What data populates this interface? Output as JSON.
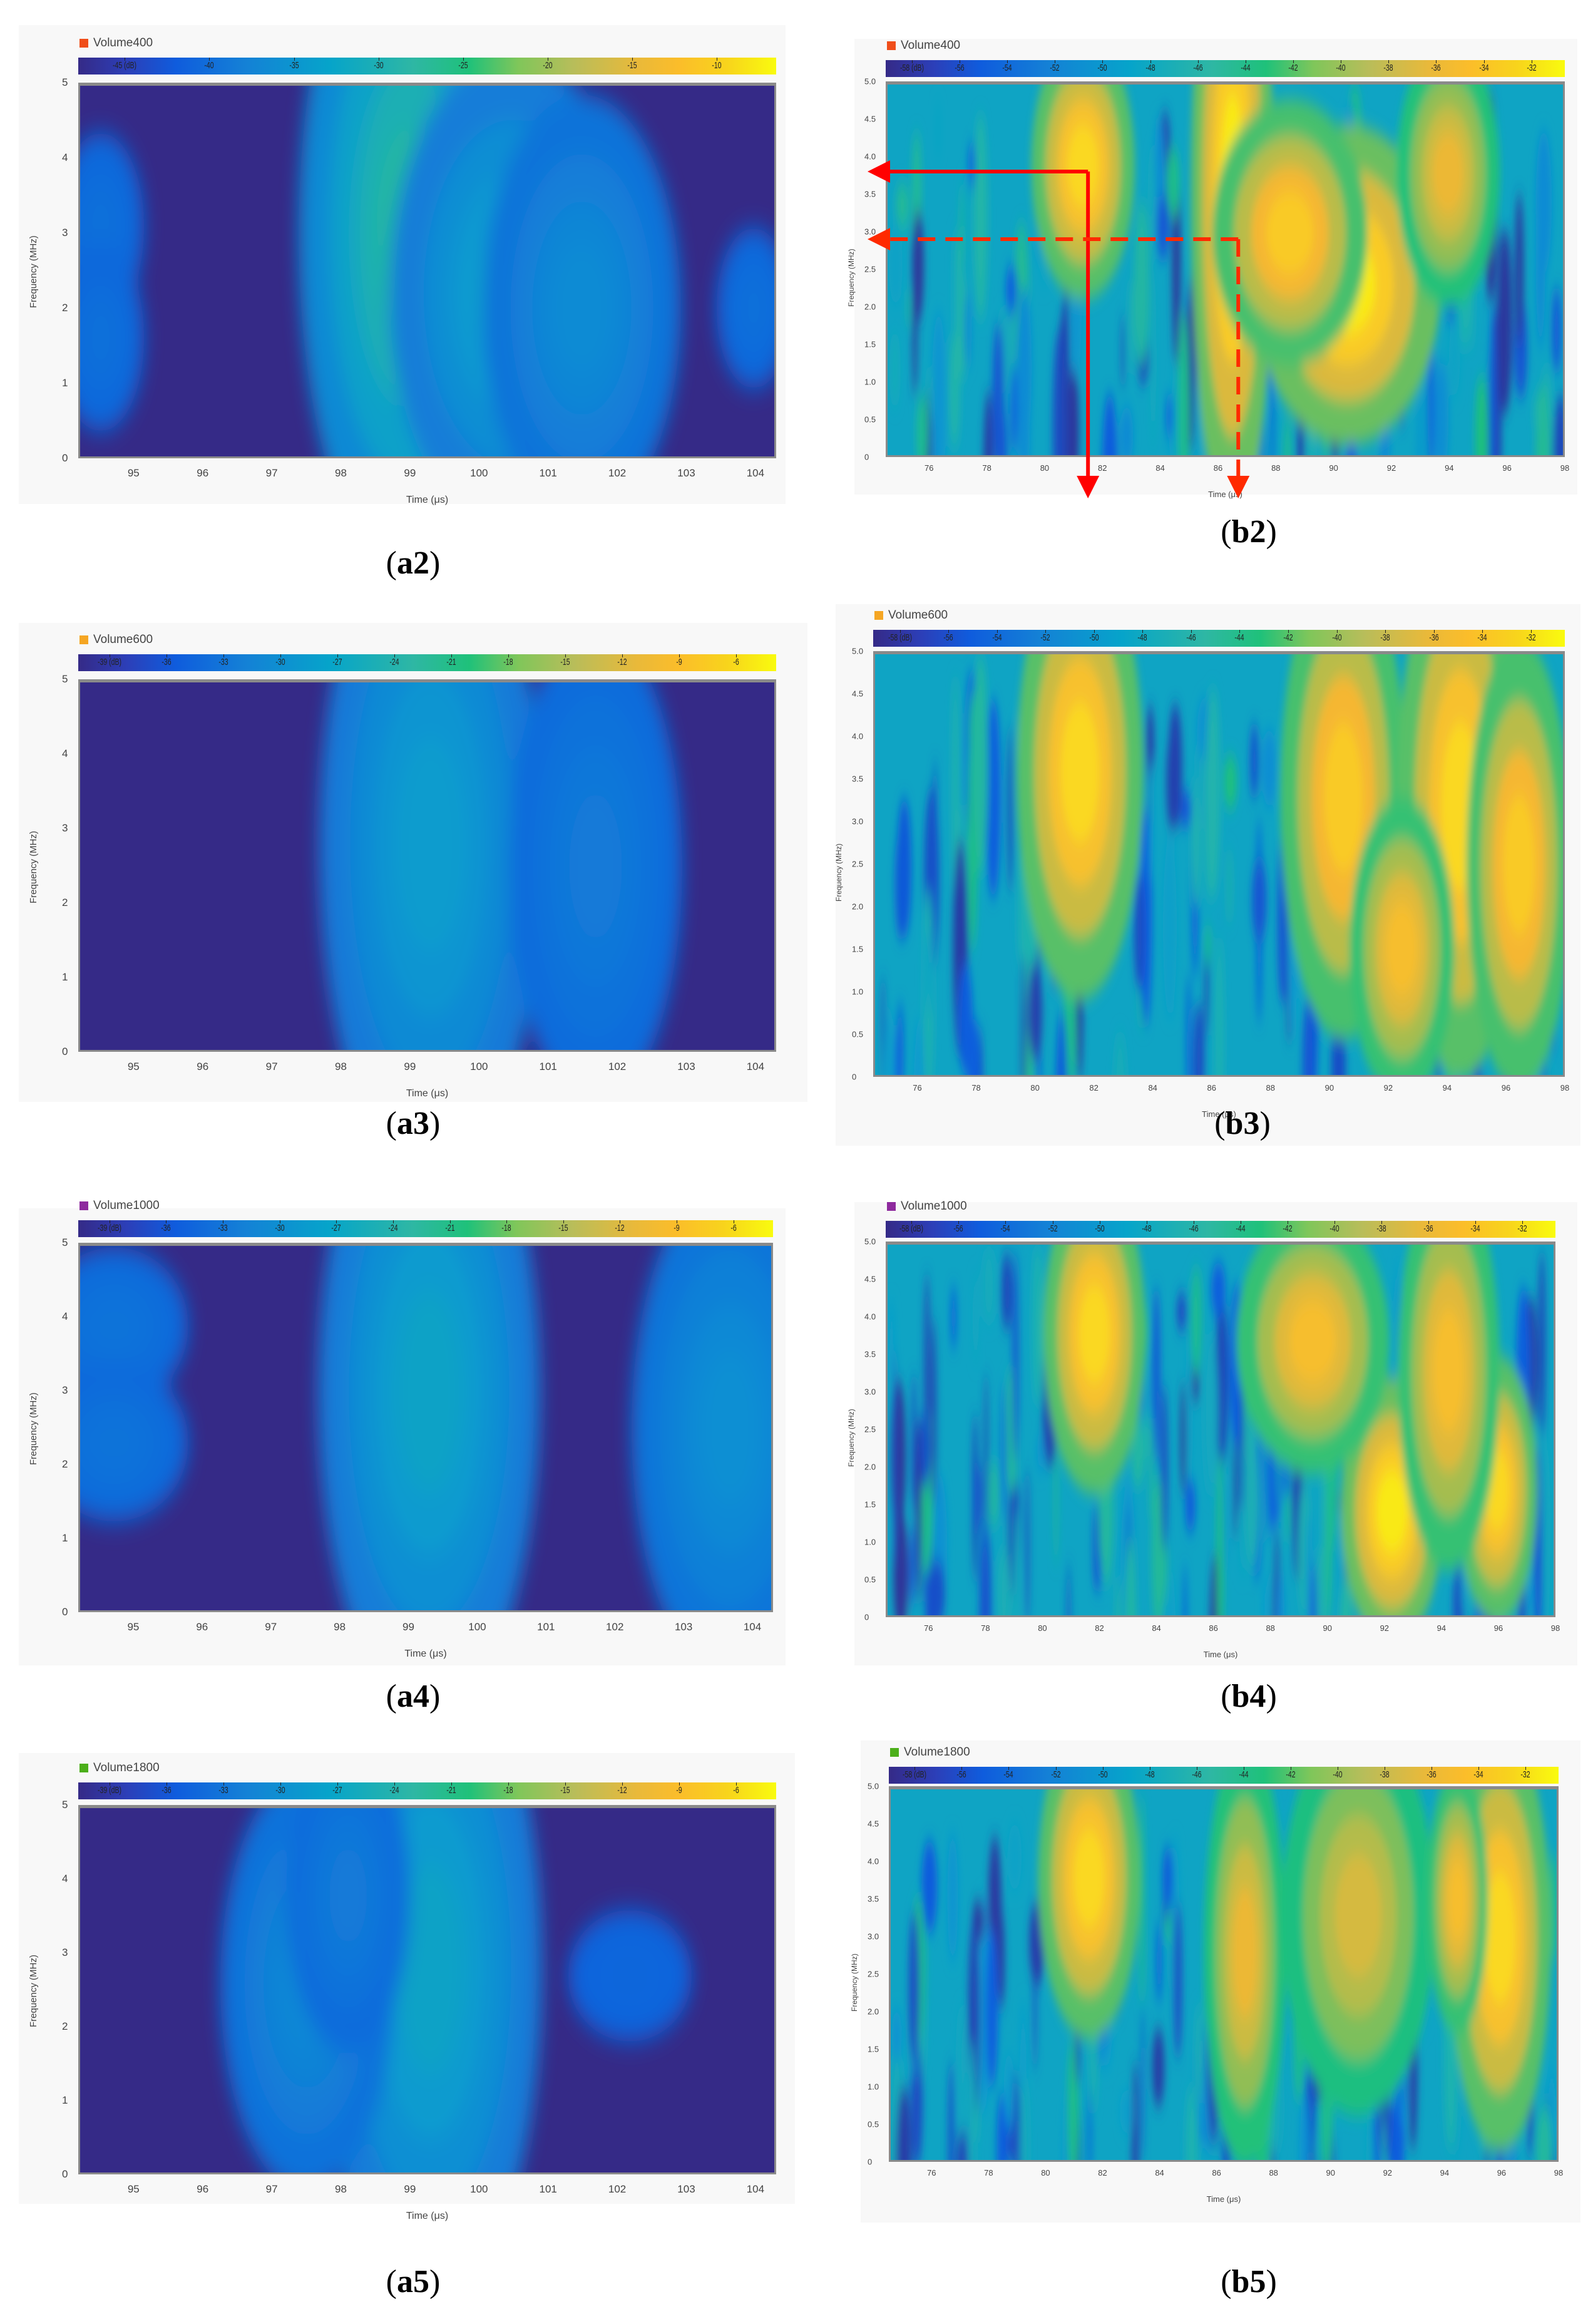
{
  "figure": {
    "panels": [
      {
        "id": "a2",
        "caption_letter": "a2",
        "legend": {
          "label": "Volume400",
          "color": "#f04e1a"
        },
        "colorbar": {
          "ticks": [
            "-45 (dB)",
            "-40",
            "-35",
            "-30",
            "-25",
            "-20",
            "-15",
            "-10"
          ],
          "range": [
            -48,
            -6
          ]
        },
        "xticks": [
          "95",
          "96",
          "97",
          "98",
          "99",
          "100",
          "101",
          "102",
          "103",
          "104"
        ],
        "yticks": [
          "5",
          "4",
          "3",
          "2",
          "1",
          "0"
        ],
        "xlabel": "Time (μs)",
        "ylabel": "Frequency (MHz)"
      },
      {
        "id": "b2",
        "caption_letter": "b2",
        "legend": {
          "label": "Volume400",
          "color": "#f04e1a"
        },
        "colorbar": {
          "ticks": [
            "-58 (dB)",
            "-56",
            "-54",
            "-52",
            "-50",
            "-48",
            "-46",
            "-44",
            "-42",
            "-40",
            "-38",
            "-36",
            "-34",
            "-32"
          ],
          "range": [
            -59,
            -30
          ]
        },
        "xticks": [
          "76",
          "78",
          "80",
          "82",
          "84",
          "86",
          "88",
          "90",
          "92",
          "94",
          "96",
          "98"
        ],
        "yticks": [
          "5.0",
          "4.5",
          "4.0",
          "3.5",
          "3.0",
          "2.5",
          "2.0",
          "1.5",
          "1.0",
          "0.5",
          "0"
        ],
        "xlabel": "Time (μs)",
        "ylabel": "Frequency (MHz)"
      },
      {
        "id": "a3",
        "caption_letter": "a3",
        "legend": {
          "label": "Volume600",
          "color": "#f5a623"
        },
        "colorbar": {
          "ticks": [
            "-39 (dB)",
            "-36",
            "-33",
            "-30",
            "-27",
            "-24",
            "-21",
            "-18",
            "-15",
            "-12",
            "-9",
            "-6"
          ],
          "range": [
            -39,
            -5
          ]
        },
        "xticks": [
          "95",
          "96",
          "97",
          "98",
          "99",
          "100",
          "101",
          "102",
          "103",
          "104"
        ],
        "yticks": [
          "5",
          "4",
          "3",
          "2",
          "1",
          "0"
        ],
        "xlabel": "Time (μs)",
        "ylabel": "Frequency (MHz)"
      },
      {
        "id": "b3",
        "caption_letter": "b3",
        "legend": {
          "label": "Volume600",
          "color": "#f5a623"
        },
        "colorbar": {
          "ticks": [
            "-58 (dB)",
            "-56",
            "-54",
            "-52",
            "-50",
            "-48",
            "-46",
            "-44",
            "-42",
            "-40",
            "-38",
            "-36",
            "-34",
            "-32"
          ],
          "range": [
            -59,
            -30
          ]
        },
        "xticks": [
          "76",
          "78",
          "80",
          "82",
          "84",
          "86",
          "88",
          "90",
          "92",
          "94",
          "96",
          "98"
        ],
        "yticks": [
          "5.0",
          "4.5",
          "4.0",
          "3.5",
          "3.0",
          "2.5",
          "2.0",
          "1.5",
          "1.0",
          "0.5",
          "0"
        ],
        "xlabel": "Time (μs)",
        "ylabel": "Frequency (MHz)"
      },
      {
        "id": "a4",
        "caption_letter": "a4",
        "legend": {
          "label": "Volume1000",
          "color": "#8e2a9e"
        },
        "colorbar": {
          "ticks": [
            "-39 (dB)",
            "-36",
            "-33",
            "-30",
            "-27",
            "-24",
            "-21",
            "-18",
            "-15",
            "-12",
            "-9",
            "-6"
          ],
          "range": [
            -39,
            -5
          ]
        },
        "xticks": [
          "95",
          "96",
          "97",
          "98",
          "99",
          "100",
          "101",
          "102",
          "103",
          "104"
        ],
        "yticks": [
          "5",
          "4",
          "3",
          "2",
          "1",
          "0"
        ],
        "xlabel": "Time (μs)",
        "ylabel": "Frequency (MHz)"
      },
      {
        "id": "b4",
        "caption_letter": "b4",
        "legend": {
          "label": "Volume1000",
          "color": "#8e2a9e"
        },
        "colorbar": {
          "ticks": [
            "-58 (dB)",
            "-56",
            "-54",
            "-52",
            "-50",
            "-48",
            "-46",
            "-44",
            "-42",
            "-40",
            "-38",
            "-36",
            "-34",
            "-32"
          ],
          "range": [
            -59,
            -30
          ]
        },
        "xticks": [
          "76",
          "78",
          "80",
          "82",
          "84",
          "86",
          "88",
          "90",
          "92",
          "94",
          "96",
          "98"
        ],
        "yticks": [
          "5.0",
          "4.5",
          "4.0",
          "3.5",
          "3.0",
          "2.5",
          "2.0",
          "1.5",
          "1.0",
          "0.5",
          "0"
        ],
        "xlabel": "Time (μs)",
        "ylabel": "Frequency (MHz)"
      },
      {
        "id": "a5",
        "caption_letter": "a5",
        "legend": {
          "label": "Volume1800",
          "color": "#4caf1a"
        },
        "colorbar": {
          "ticks": [
            "-39 (dB)",
            "-36",
            "-33",
            "-30",
            "-27",
            "-24",
            "-21",
            "-18",
            "-15",
            "-12",
            "-9",
            "-6"
          ],
          "range": [
            -39,
            -5
          ]
        },
        "xticks": [
          "95",
          "96",
          "97",
          "98",
          "99",
          "100",
          "101",
          "102",
          "103",
          "104"
        ],
        "yticks": [
          "5",
          "4",
          "3",
          "2",
          "1",
          "0"
        ],
        "xlabel": "Time (μs)",
        "ylabel": "Frequency (MHz)"
      },
      {
        "id": "b5",
        "caption_letter": "b5",
        "legend": {
          "label": "Volume1800",
          "color": "#4caf1a"
        },
        "colorbar": {
          "ticks": [
            "-58 (dB)",
            "-56",
            "-54",
            "-52",
            "-50",
            "-48",
            "-46",
            "-44",
            "-42",
            "-40",
            "-38",
            "-36",
            "-34",
            "-32"
          ],
          "range": [
            -59,
            -30
          ]
        },
        "xticks": [
          "76",
          "78",
          "80",
          "82",
          "84",
          "86",
          "88",
          "90",
          "92",
          "94",
          "96",
          "98"
        ],
        "yticks": [
          "5.0",
          "4.5",
          "4.0",
          "3.5",
          "3.0",
          "2.5",
          "2.0",
          "1.5",
          "1.0",
          "0.5",
          "0"
        ],
        "xlabel": "Time (μs)",
        "ylabel": "Frequency (MHz)"
      }
    ]
  },
  "chart_data": [
    {
      "type": "heatmap",
      "panel": "a2",
      "title": "Volume400",
      "xlabel": "Time (μs)",
      "ylabel": "Frequency (MHz)",
      "xlim": [
        94.2,
        104.3
      ],
      "ylim": [
        0,
        5
      ],
      "colorbar_label": "dB",
      "clim": [
        -48,
        -6
      ],
      "xticks": [
        95,
        96,
        97,
        98,
        99,
        100,
        101,
        102,
        103,
        104
      ],
      "yticks": [
        0,
        1,
        2,
        3,
        4,
        5
      ],
      "hotspots": [
        {
          "t": 99.2,
          "f": 2.0,
          "dt": 0.6,
          "df": 1.3,
          "level_db": -18
        },
        {
          "t": 99.0,
          "f": 3.0,
          "dt": 0.9,
          "df": 2.6,
          "level_db": -26
        },
        {
          "t": 100.5,
          "f": 2.2,
          "dt": 1.0,
          "df": 1.8,
          "level_db": -31
        },
        {
          "t": 101.5,
          "f": 2.0,
          "dt": 0.8,
          "df": 1.6,
          "level_db": -35
        },
        {
          "t": 94.5,
          "f": 3.1,
          "dt": 0.35,
          "df": 0.7,
          "level_db": -40
        },
        {
          "t": 94.5,
          "f": 1.6,
          "dt": 0.35,
          "df": 0.7,
          "level_db": -40
        },
        {
          "t": 104.0,
          "f": 2.0,
          "dt": 0.3,
          "df": 0.6,
          "level_db": -40
        }
      ]
    },
    {
      "type": "heatmap",
      "panel": "b2",
      "title": "Volume400",
      "xlabel": "Time (μs)",
      "ylabel": "Frequency (MHz)",
      "xlim": [
        74.5,
        98
      ],
      "ylim": [
        0,
        5
      ],
      "colorbar_label": "dB",
      "clim": [
        -59,
        -30
      ],
      "xticks": [
        76,
        78,
        80,
        82,
        84,
        86,
        88,
        90,
        92,
        94,
        96,
        98
      ],
      "yticks": [
        0,
        0.5,
        1.0,
        1.5,
        2.0,
        2.5,
        3.0,
        3.5,
        4.0,
        4.5,
        5.0
      ],
      "hotspots": [
        {
          "t": 81.3,
          "f": 3.9,
          "dt": 1.0,
          "df": 1.0,
          "level_db": -32
        },
        {
          "t": 86.5,
          "f": 3.5,
          "dt": 0.8,
          "df": 2.5,
          "level_db": -31
        },
        {
          "t": 90.5,
          "f": 2.3,
          "dt": 1.8,
          "df": 1.2,
          "level_db": -31
        },
        {
          "t": 88.5,
          "f": 3.0,
          "dt": 1.5,
          "df": 1.0,
          "level_db": -33
        },
        {
          "t": 94.0,
          "f": 3.8,
          "dt": 1.0,
          "df": 1.0,
          "level_db": -35
        }
      ],
      "annotations": [
        {
          "style": "solid",
          "color": "#ff0000",
          "freq_mhz": 3.8,
          "time_us": 81.5
        },
        {
          "style": "dashed",
          "color": "#ff2a00",
          "freq_mhz": 2.9,
          "time_us": 86.7
        }
      ]
    },
    {
      "type": "heatmap",
      "panel": "a3",
      "title": "Volume600",
      "xlabel": "Time (μs)",
      "ylabel": "Frequency (MHz)",
      "xlim": [
        94.2,
        104.3
      ],
      "ylim": [
        0,
        5
      ],
      "colorbar_label": "dB",
      "clim": [
        -39,
        -5
      ],
      "xticks": [
        95,
        96,
        97,
        98,
        99,
        100,
        101,
        102,
        103,
        104
      ],
      "yticks": [
        0,
        1,
        2,
        3,
        4,
        5
      ],
      "hotspots": [
        {
          "t": 99.2,
          "f": 1.7,
          "dt": 0.5,
          "df": 1.0,
          "level_db": -19
        },
        {
          "t": 99.3,
          "f": 2.8,
          "dt": 0.9,
          "df": 2.6,
          "level_db": -26
        },
        {
          "t": 101.7,
          "f": 2.5,
          "dt": 0.7,
          "df": 1.8,
          "level_db": -31
        }
      ]
    },
    {
      "type": "heatmap",
      "panel": "b3",
      "title": "Volume600",
      "xlabel": "Time (μs)",
      "ylabel": "Frequency (MHz)",
      "xlim": [
        74.5,
        98
      ],
      "ylim": [
        0,
        5
      ],
      "colorbar_label": "dB",
      "clim": [
        -59,
        -30
      ],
      "xticks": [
        76,
        78,
        80,
        82,
        84,
        86,
        88,
        90,
        92,
        94,
        96,
        98
      ],
      "yticks": [
        0,
        0.5,
        1.0,
        1.5,
        2.0,
        2.5,
        3.0,
        3.5,
        4.0,
        4.5,
        5.0
      ],
      "hotspots": [
        {
          "t": 81.5,
          "f": 3.6,
          "dt": 1.2,
          "df": 1.5,
          "level_db": -32
        },
        {
          "t": 90.5,
          "f": 3.3,
          "dt": 1.2,
          "df": 1.6,
          "level_db": -33
        },
        {
          "t": 94.5,
          "f": 3.2,
          "dt": 1.2,
          "df": 1.8,
          "level_db": -32
        },
        {
          "t": 92.5,
          "f": 1.5,
          "dt": 1.0,
          "df": 1.0,
          "level_db": -34
        },
        {
          "t": 96.5,
          "f": 2.5,
          "dt": 1.0,
          "df": 1.5,
          "level_db": -33
        }
      ]
    },
    {
      "type": "heatmap",
      "panel": "a4",
      "title": "Volume1000",
      "xlabel": "Time (μs)",
      "ylabel": "Frequency (MHz)",
      "xlim": [
        94.2,
        104.3
      ],
      "ylim": [
        0,
        5
      ],
      "colorbar_label": "dB",
      "clim": [
        -39,
        -5
      ],
      "xticks": [
        95,
        96,
        97,
        98,
        99,
        100,
        101,
        102,
        103,
        104
      ],
      "yticks": [
        0,
        1,
        2,
        3,
        4,
        5
      ],
      "hotspots": [
        {
          "t": 99.3,
          "f": 1.8,
          "dt": 0.5,
          "df": 1.0,
          "level_db": -18
        },
        {
          "t": 99.3,
          "f": 3.0,
          "dt": 0.9,
          "df": 2.5,
          "level_db": -25
        },
        {
          "t": 103.7,
          "f": 2.5,
          "dt": 0.8,
          "df": 1.9,
          "level_db": -28
        },
        {
          "t": 94.7,
          "f": 3.9,
          "dt": 0.6,
          "df": 0.6,
          "level_db": -32
        },
        {
          "t": 94.7,
          "f": 2.3,
          "dt": 0.6,
          "df": 0.6,
          "level_db": -32
        }
      ]
    },
    {
      "type": "heatmap",
      "panel": "b4",
      "title": "Volume1000",
      "xlabel": "Time (μs)",
      "ylabel": "Frequency (MHz)",
      "xlim": [
        74.5,
        98
      ],
      "ylim": [
        0,
        5
      ],
      "colorbar_label": "dB",
      "clim": [
        -59,
        -30
      ],
      "xticks": [
        76,
        78,
        80,
        82,
        84,
        86,
        88,
        90,
        92,
        94,
        96,
        98
      ],
      "yticks": [
        0,
        0.5,
        1.0,
        1.5,
        2.0,
        2.5,
        3.0,
        3.5,
        4.0,
        4.5,
        5.0
      ],
      "hotspots": [
        {
          "t": 81.8,
          "f": 3.8,
          "dt": 1.0,
          "df": 1.2,
          "level_db": -32
        },
        {
          "t": 92.3,
          "f": 1.4,
          "dt": 1.0,
          "df": 1.0,
          "level_db": -31
        },
        {
          "t": 96.0,
          "f": 1.7,
          "dt": 0.8,
          "df": 1.0,
          "level_db": -32
        },
        {
          "t": 89.5,
          "f": 3.7,
          "dt": 1.5,
          "df": 1.0,
          "level_db": -34
        },
        {
          "t": 94.3,
          "f": 3.3,
          "dt": 1.0,
          "df": 1.5,
          "level_db": -34
        }
      ]
    },
    {
      "type": "heatmap",
      "panel": "a5",
      "title": "Volume1800",
      "xlabel": "Time (μs)",
      "ylabel": "Frequency (MHz)",
      "xlim": [
        94.2,
        104.3
      ],
      "ylim": [
        0,
        5
      ],
      "colorbar_label": "dB",
      "clim": [
        -39,
        -5
      ],
      "xticks": [
        95,
        96,
        97,
        98,
        99,
        100,
        101,
        102,
        103,
        104
      ],
      "yticks": [
        0,
        1,
        2,
        3,
        4,
        5
      ],
      "hotspots": [
        {
          "t": 99.3,
          "f": 1.6,
          "dt": 0.5,
          "df": 1.0,
          "level_db": -19
        },
        {
          "t": 99.3,
          "f": 2.8,
          "dt": 0.9,
          "df": 2.6,
          "level_db": -25
        },
        {
          "t": 97.5,
          "f": 2.6,
          "dt": 0.7,
          "df": 1.6,
          "level_db": -29
        },
        {
          "t": 98.1,
          "f": 3.8,
          "dt": 0.5,
          "df": 1.2,
          "level_db": -31
        },
        {
          "t": 102.2,
          "f": 2.7,
          "dt": 0.5,
          "df": 0.5,
          "level_db": -34
        }
      ]
    },
    {
      "type": "heatmap",
      "panel": "b5",
      "title": "Volume1800",
      "xlabel": "Time (μs)",
      "ylabel": "Frequency (MHz)",
      "xlim": [
        74.5,
        98
      ],
      "ylim": [
        0,
        5
      ],
      "colorbar_label": "dB",
      "clim": [
        -59,
        -30
      ],
      "xticks": [
        76,
        78,
        80,
        82,
        84,
        86,
        88,
        90,
        92,
        94,
        96,
        98
      ],
      "yticks": [
        0,
        0.5,
        1.0,
        1.5,
        2.0,
        2.5,
        3.0,
        3.5,
        4.0,
        4.5,
        5.0
      ],
      "hotspots": [
        {
          "t": 81.5,
          "f": 3.8,
          "dt": 1.0,
          "df": 1.2,
          "level_db": -32
        },
        {
          "t": 96.0,
          "f": 3.0,
          "dt": 1.0,
          "df": 1.6,
          "level_db": -32
        },
        {
          "t": 87.0,
          "f": 2.8,
          "dt": 0.8,
          "df": 1.6,
          "level_db": -35
        },
        {
          "t": 91.0,
          "f": 3.3,
          "dt": 1.5,
          "df": 1.5,
          "level_db": -36
        },
        {
          "t": 94.5,
          "f": 3.5,
          "dt": 0.6,
          "df": 1.0,
          "level_db": -34
        }
      ]
    }
  ]
}
